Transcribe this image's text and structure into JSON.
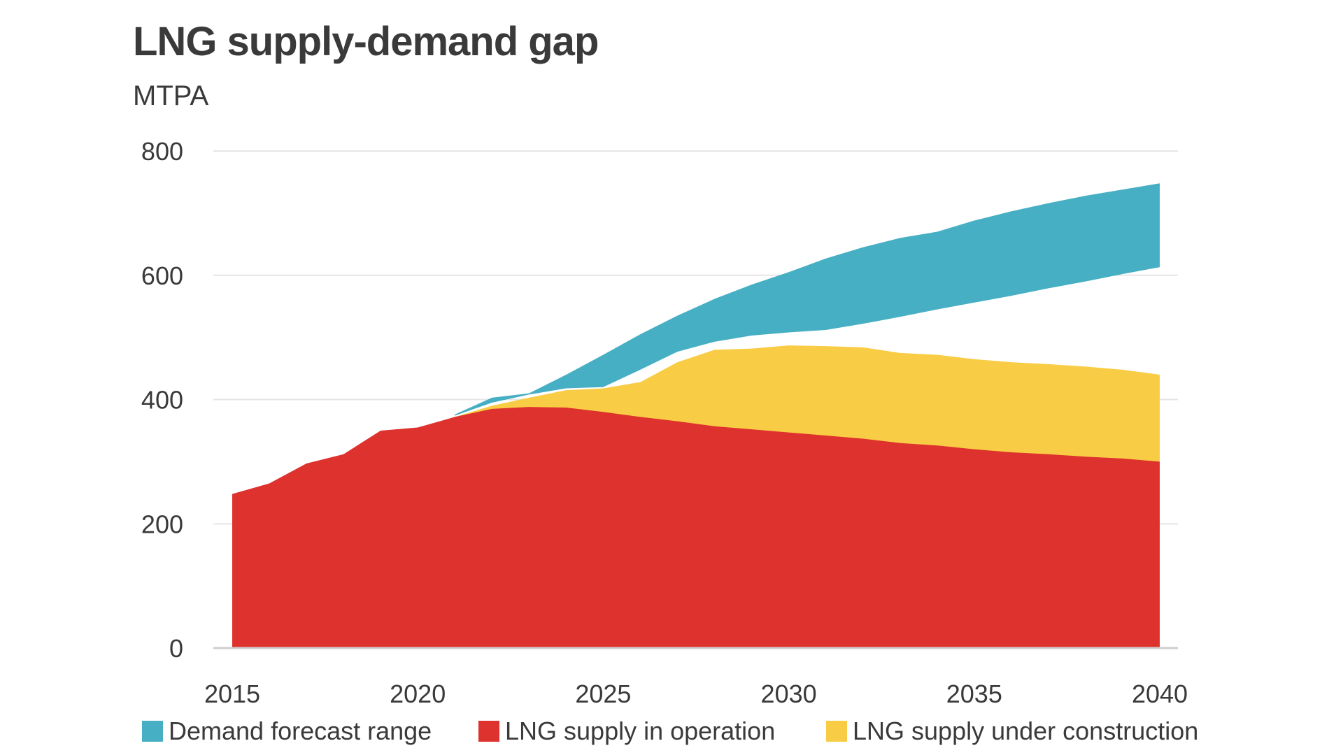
{
  "chart_data": {
    "type": "area",
    "title": "LNG supply-demand gap",
    "subtitle": "MTPA",
    "xlabel": "",
    "ylabel": "MTPA",
    "xlim": [
      2015,
      2040
    ],
    "ylim": [
      0,
      800
    ],
    "yticks": [
      0,
      200,
      400,
      600,
      800
    ],
    "xticks": [
      2015,
      2020,
      2025,
      2030,
      2035,
      2040
    ],
    "grid": true,
    "legend_position": "bottom",
    "x": [
      2015,
      2016,
      2017,
      2018,
      2019,
      2020,
      2021,
      2022,
      2023,
      2024,
      2025,
      2026,
      2027,
      2028,
      2029,
      2030,
      2031,
      2032,
      2033,
      2034,
      2035,
      2036,
      2037,
      2038,
      2039,
      2040
    ],
    "series": [
      {
        "name": "LNG supply in operation",
        "color": "#DD322D",
        "values": [
          248,
          265,
          297,
          312,
          350,
          355,
          372,
          385,
          388,
          387,
          380,
          372,
          365,
          357,
          352,
          347,
          342,
          337,
          330,
          326,
          320,
          315,
          312,
          308,
          305,
          300
        ]
      },
      {
        "name": "LNG supply under construction",
        "color": "#F9CC45",
        "note_stacked_total": true,
        "x_start": 2021,
        "totals": [
          372,
          390,
          403,
          415,
          418,
          428,
          460,
          480,
          482,
          487,
          486,
          484,
          475,
          472,
          465,
          460,
          457,
          453,
          448,
          440
        ]
      },
      {
        "name": "Demand forecast range",
        "color": "#47AFC3",
        "x_start": 2021,
        "low": [
          374,
          395,
          408,
          418,
          420,
          448,
          477,
          493,
          503,
          508,
          512,
          522,
          533,
          545,
          556,
          567,
          579,
          590,
          602,
          613
        ],
        "high": [
          376,
          403,
          410,
          440,
          472,
          505,
          535,
          562,
          585,
          605,
          627,
          645,
          660,
          670,
          688,
          703,
          716,
          728,
          738,
          748
        ]
      }
    ]
  },
  "legend": [
    {
      "label": "Demand forecast range",
      "color": "#47AFC3"
    },
    {
      "label": "LNG supply in operation",
      "color": "#DD322D"
    },
    {
      "label": "LNG supply under construction",
      "color": "#F9CC45"
    }
  ]
}
